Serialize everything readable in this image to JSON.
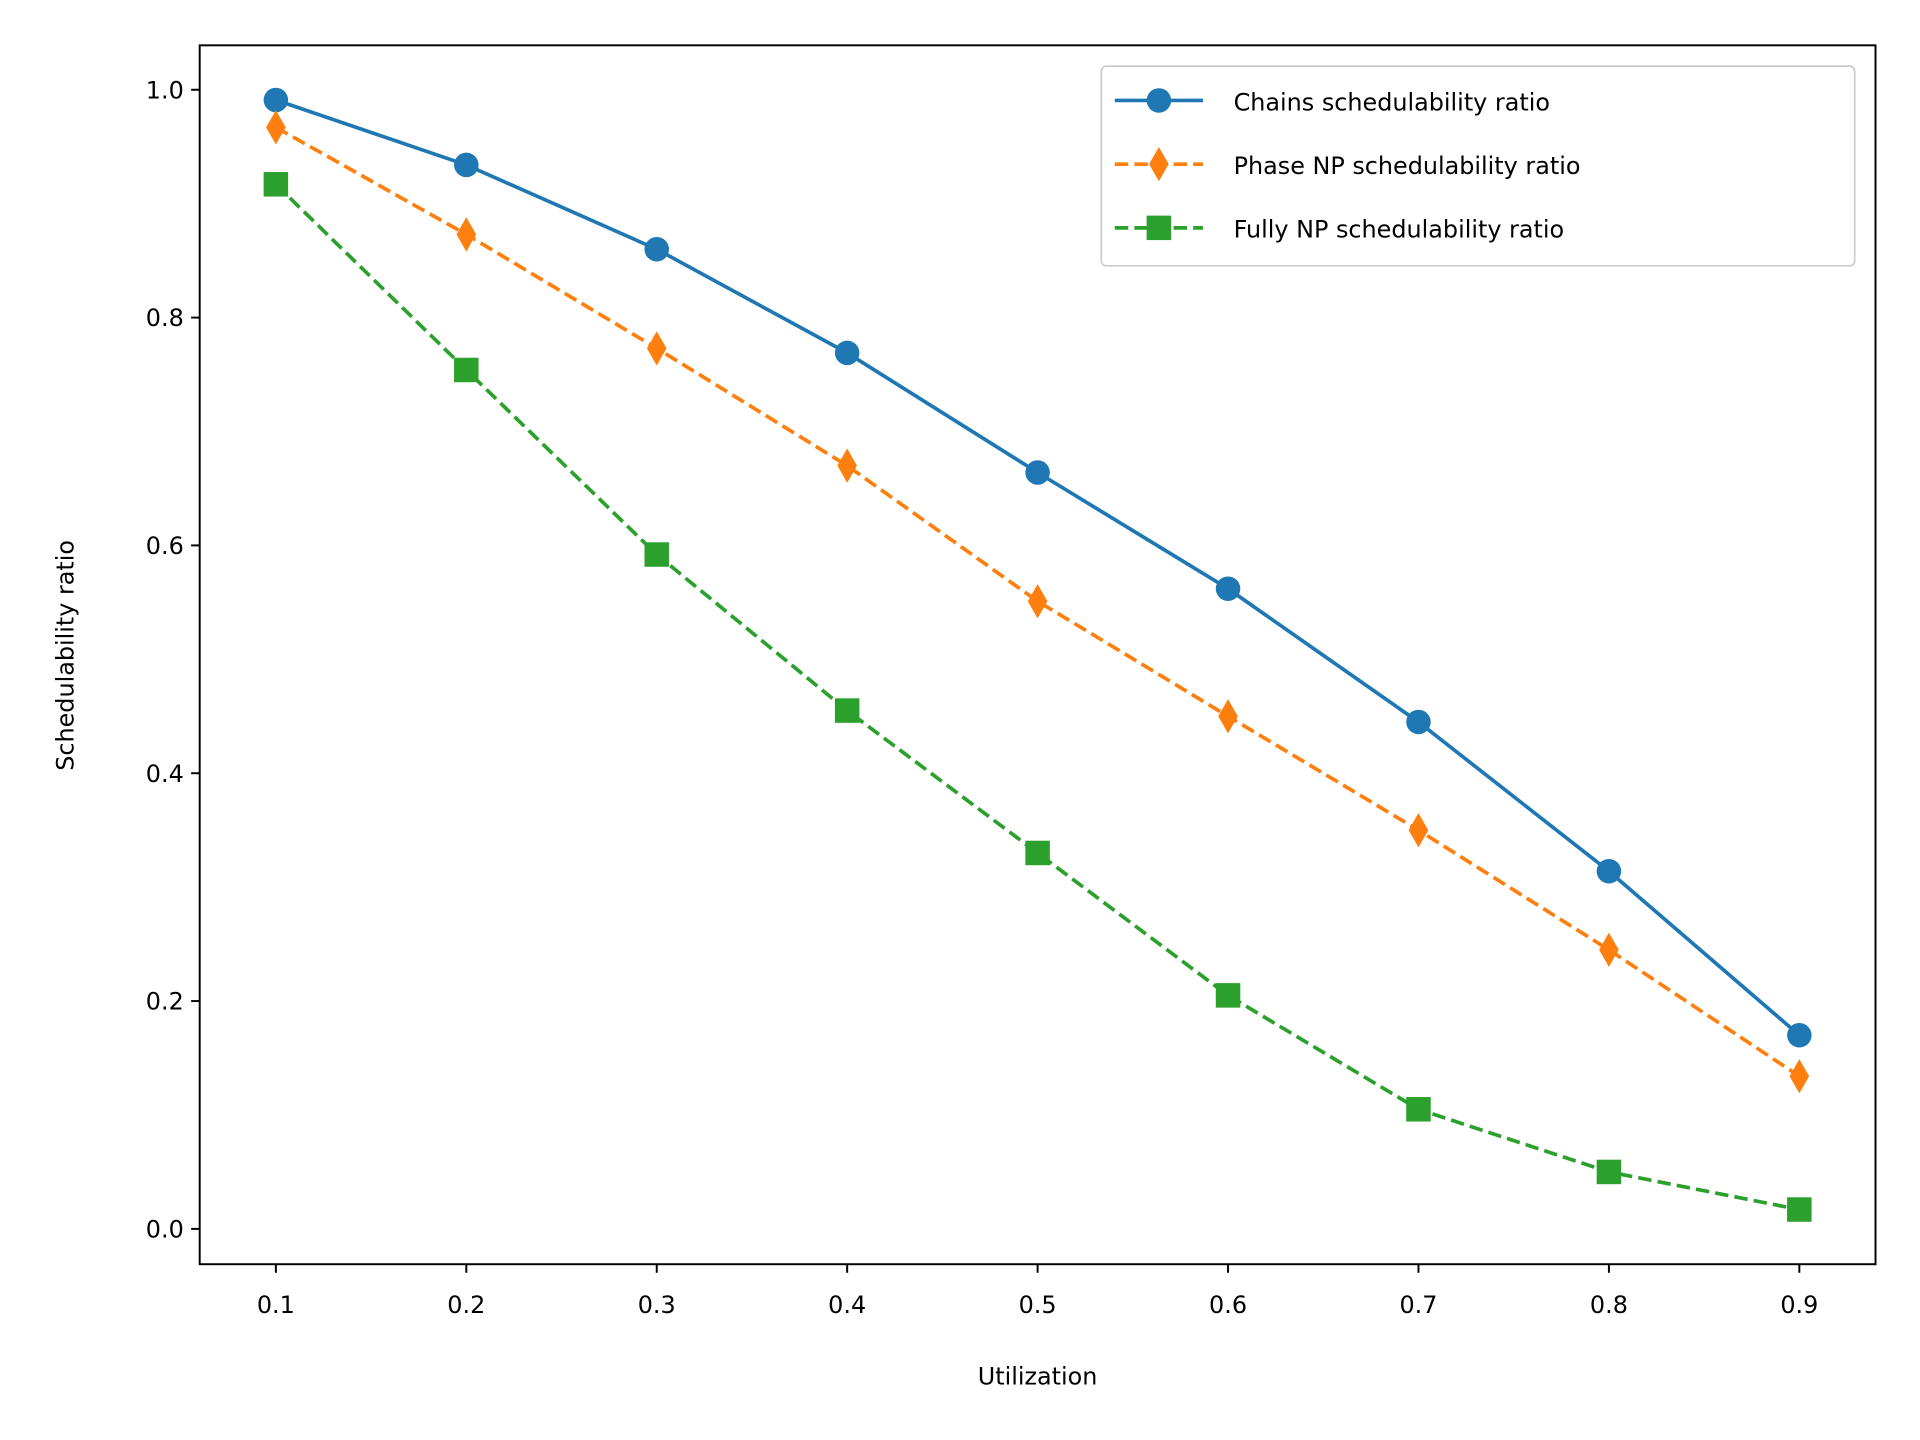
{
  "chart_data": {
    "type": "line",
    "title": "",
    "xlabel": "Utilization",
    "ylabel": "Schedulability ratio",
    "x": [
      0.1,
      0.2,
      0.3,
      0.4,
      0.5,
      0.6,
      0.7,
      0.8,
      0.9
    ],
    "xlim": [
      0.06,
      0.94
    ],
    "ylim": [
      -0.031,
      1.039
    ],
    "xticks": [
      "0.1",
      "0.2",
      "0.3",
      "0.4",
      "0.5",
      "0.6",
      "0.7",
      "0.8",
      "0.9"
    ],
    "yticks": [
      "0.0",
      "0.2",
      "0.4",
      "0.6",
      "0.8",
      "1.0"
    ],
    "grid": false,
    "legend_position": "top-right",
    "series": [
      {
        "name": "Chains schedulability ratio",
        "color": "#1f77b4",
        "marker": "circle",
        "linestyle": "solid",
        "values": [
          0.991,
          0.934,
          0.86,
          0.769,
          0.664,
          0.562,
          0.445,
          0.314,
          0.17
        ]
      },
      {
        "name": "Phase NP schedulability ratio",
        "color": "#ff7f0e",
        "marker": "thin-diamond",
        "linestyle": "dashed",
        "values": [
          0.967,
          0.873,
          0.773,
          0.67,
          0.551,
          0.45,
          0.35,
          0.245,
          0.134
        ]
      },
      {
        "name": "Fully NP schedulability ratio",
        "color": "#2ca02c",
        "marker": "square",
        "linestyle": "dashed",
        "values": [
          0.917,
          0.754,
          0.592,
          0.455,
          0.33,
          0.205,
          0.105,
          0.05,
          0.017
        ]
      }
    ]
  }
}
